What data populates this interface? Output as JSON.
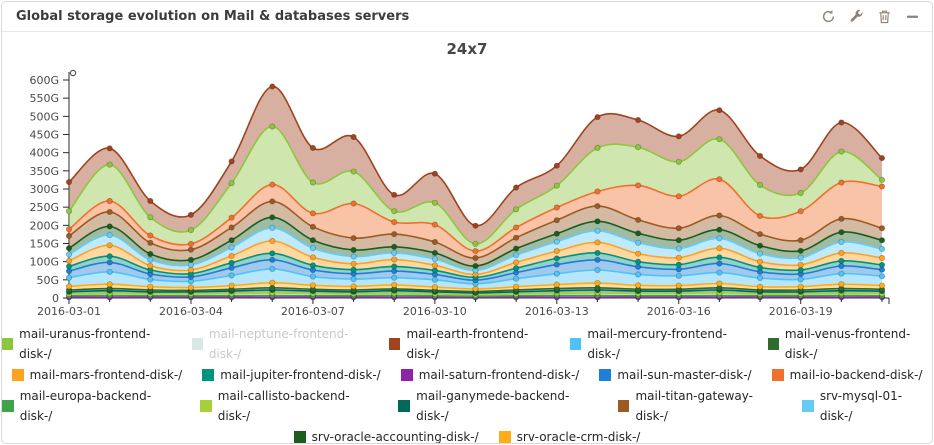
{
  "panel": {
    "title": "Global storage evolution on Mail & databases servers",
    "icons": [
      {
        "name": "refresh"
      },
      {
        "name": "wrench"
      },
      {
        "name": "trash"
      },
      {
        "name": "collapse"
      }
    ]
  },
  "chart_data": {
    "type": "area",
    "stacked": true,
    "title": "24x7",
    "ylabel": "",
    "xlabel": "",
    "ylim": [
      0,
      600
    ],
    "y_tick_step": 50,
    "y_unit": "G",
    "days": 21,
    "x_start": "2016-03-01",
    "x_major_labels": [
      "2016-03-01",
      "2016-03-04",
      "2016-03-07",
      "2016-03-10",
      "2016-03-13",
      "2016-03-16",
      "2016-03-19"
    ],
    "x_major_indices": [
      0,
      3,
      6,
      9,
      12,
      15,
      18
    ],
    "legend_position": "bottom",
    "grid": false,
    "stack_order": [
      "saturn",
      "europa",
      "callisto",
      "ganymede",
      "venus",
      "crm",
      "mercury",
      "sun",
      "jupiter",
      "mars",
      "mysql",
      "accounting",
      "titan",
      "io",
      "uranus",
      "earth"
    ],
    "legend_rows": [
      [
        "uranus",
        "neptune",
        "earth",
        "mercury",
        "venus"
      ],
      [
        "mars",
        "jupiter",
        "saturn",
        "sun",
        "io"
      ],
      [
        "europa",
        "callisto",
        "ganymede",
        "titan",
        "mysql"
      ],
      [
        "accounting",
        "crm"
      ]
    ],
    "series": [
      {
        "key": "uranus",
        "label": "mail-uranus-frontend-disk-/",
        "color": "#8DC63F",
        "disabled": false,
        "values": [
          50,
          100,
          50,
          38,
          95,
          160,
          85,
          88,
          30,
          60,
          20,
          50,
          60,
          120,
          105,
          95,
          110,
          85,
          50,
          85,
          18
        ]
      },
      {
        "key": "neptune",
        "label": "mail-neptune-frontend-disk-/",
        "color": "#D8E8E4",
        "disabled": true,
        "values": [
          0,
          0,
          0,
          0,
          0,
          0,
          0,
          0,
          0,
          0,
          0,
          0,
          0,
          0,
          0,
          0,
          0,
          0,
          0,
          0,
          0
        ]
      },
      {
        "key": "earth",
        "label": "mail-earth-frontend-disk-/",
        "color": "#A0431F",
        "disabled": false,
        "values": [
          80,
          45,
          45,
          42,
          60,
          110,
          95,
          95,
          45,
          80,
          50,
          60,
          55,
          85,
          75,
          70,
          80,
          80,
          65,
          80,
          60
        ]
      },
      {
        "key": "mercury",
        "label": "mail-mercury-frontend-disk-/",
        "color": "#4FC3F7",
        "disabled": false,
        "values": [
          24,
          34,
          20,
          17,
          28,
          38,
          24,
          20,
          20,
          20,
          14,
          22,
          30,
          36,
          30,
          27,
          30,
          24,
          20,
          29,
          26
        ]
      },
      {
        "key": "venus",
        "label": "mail-venus-frontend-disk-/",
        "color": "#2D6B2F",
        "disabled": false,
        "values": [
          5,
          6,
          5,
          4,
          5,
          6,
          5,
          5,
          5,
          4,
          4,
          5,
          6,
          6,
          5,
          5,
          6,
          5,
          5,
          6,
          5
        ]
      },
      {
        "key": "mars",
        "label": "mail-mars-frontend-disk-/",
        "color": "#FFA21F",
        "disabled": false,
        "values": [
          15,
          30,
          12,
          10,
          19,
          34,
          22,
          16,
          19,
          14,
          8,
          16,
          20,
          29,
          22,
          19,
          25,
          16,
          14,
          22,
          19
        ]
      },
      {
        "key": "jupiter",
        "label": "mail-jupiter-frontend-disk-/",
        "color": "#00947E",
        "disabled": false,
        "values": [
          13,
          17,
          11,
          9,
          14,
          18,
          13,
          11,
          13,
          11,
          8,
          12,
          17,
          19,
          14,
          13,
          17,
          12,
          11,
          14,
          13
        ]
      },
      {
        "key": "saturn",
        "label": "mail-saturn-frontend-disk-/",
        "color": "#8E24AA",
        "disabled": false,
        "values": [
          2,
          2,
          2,
          2,
          2,
          2,
          2,
          2,
          2,
          2,
          2,
          2,
          2,
          2,
          2,
          2,
          2,
          2,
          2,
          2,
          2
        ]
      },
      {
        "key": "sun",
        "label": "mail-sun-master-disk-/",
        "color": "#1E7FD6",
        "disabled": false,
        "values": [
          18,
          26,
          15,
          12,
          21,
          25,
          18,
          15,
          18,
          15,
          10,
          17,
          25,
          28,
          21,
          18,
          25,
          17,
          15,
          21,
          18
        ]
      },
      {
        "key": "io",
        "label": "mail-io-backend-disk-/",
        "color": "#F0702D",
        "disabled": false,
        "values": [
          18,
          30,
          20,
          16,
          27,
          46,
          37,
          95,
          33,
          48,
          19,
          28,
          35,
          40,
          95,
          88,
          100,
          50,
          80,
          100,
          115
        ]
      },
      {
        "key": "europa",
        "label": "mail-europa-backend-disk-/",
        "color": "#3FA34D",
        "disabled": false,
        "values": [
          4,
          5,
          4,
          4,
          4,
          5,
          4,
          4,
          5,
          4,
          3,
          4,
          5,
          5,
          4,
          4,
          5,
          4,
          4,
          5,
          4
        ]
      },
      {
        "key": "callisto",
        "label": "mail-callisto-backend-disk-/",
        "color": "#A9CF38",
        "disabled": false,
        "values": [
          5,
          6,
          5,
          5,
          6,
          7,
          6,
          5,
          6,
          5,
          4,
          5,
          6,
          7,
          6,
          6,
          7,
          5,
          5,
          6,
          6
        ]
      },
      {
        "key": "ganymede",
        "label": "mail-ganymede-backend-disk-/",
        "color": "#00695C",
        "disabled": false,
        "values": [
          6,
          7,
          6,
          6,
          7,
          8,
          7,
          6,
          7,
          6,
          5,
          6,
          7,
          8,
          7,
          7,
          8,
          6,
          6,
          7,
          7
        ]
      },
      {
        "key": "titan",
        "label": "mail-titan-gateway-disk-/",
        "color": "#9C5B24",
        "disabled": false,
        "values": [
          34,
          40,
          31,
          28,
          35,
          44,
          37,
          33,
          35,
          30,
          22,
          30,
          37,
          42,
          37,
          33,
          39,
          32,
          29,
          37,
          33
        ]
      },
      {
        "key": "mysql",
        "label": "srv-mysql-01-disk-/",
        "color": "#66CCF5",
        "disabled": false,
        "values": [
          18,
          28,
          16,
          14,
          23,
          36,
          25,
          20,
          18,
          17,
          11,
          20,
          26,
          32,
          30,
          25,
          27,
          22,
          20,
          30,
          25
        ]
      },
      {
        "key": "accounting",
        "label": "srv-oracle-accounting-disk-/",
        "color": "#1B5E20",
        "disabled": false,
        "values": [
          17,
          24,
          16,
          14,
          20,
          29,
          22,
          18,
          17,
          17,
          12,
          18,
          22,
          26,
          26,
          23,
          24,
          22,
          19,
          27,
          24
        ]
      },
      {
        "key": "crm",
        "label": "srv-oracle-crm-disk-/",
        "color": "#FFAD17",
        "disabled": false,
        "values": [
          10,
          12,
          9,
          8,
          10,
          14,
          11,
          10,
          11,
          9,
          7,
          9,
          11,
          13,
          11,
          10,
          12,
          9,
          9,
          12,
          10
        ]
      }
    ]
  }
}
